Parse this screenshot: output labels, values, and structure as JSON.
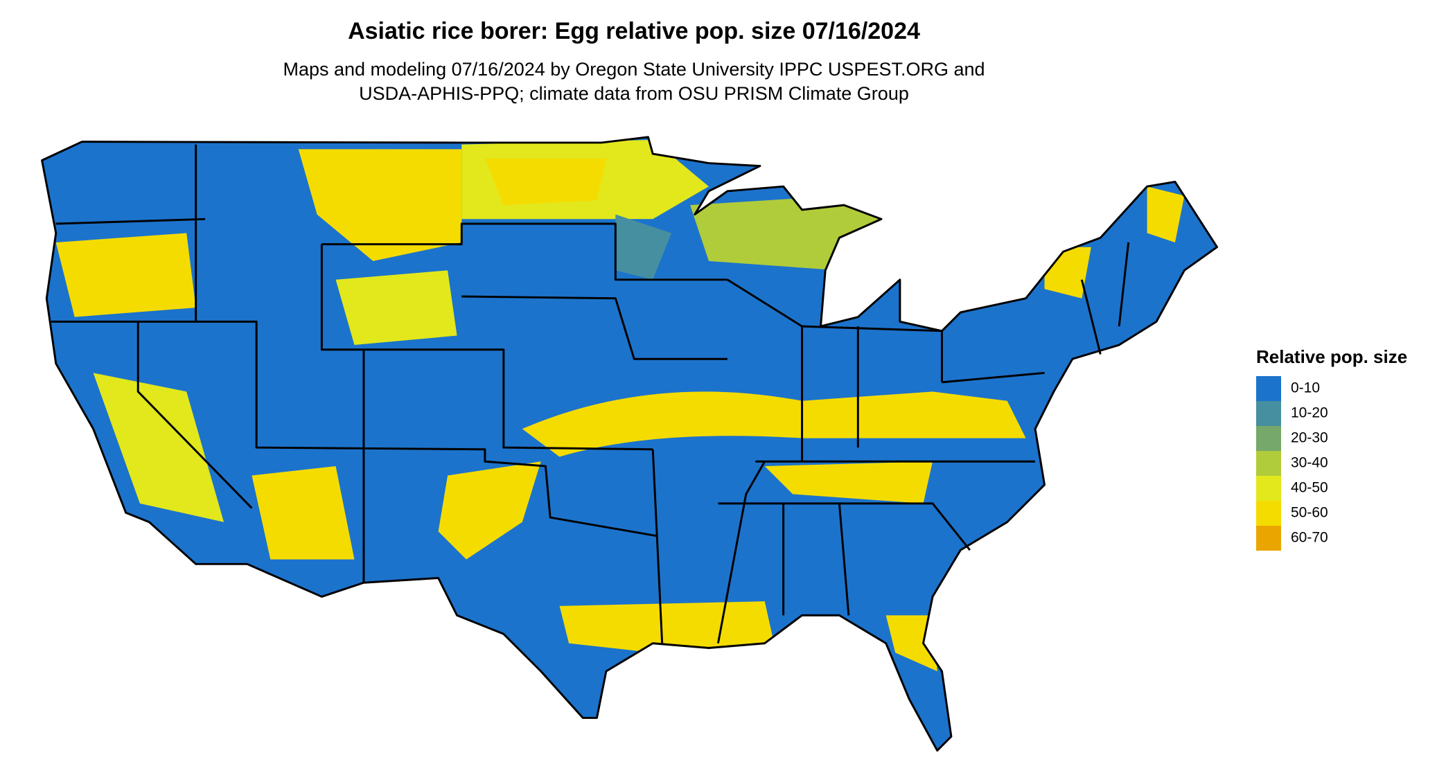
{
  "title": "Asiatic rice borer: Egg relative pop. size 07/16/2024",
  "subtitle": [
    "Maps and modeling 07/16/2024 by Oregon State University IPPC USPEST.ORG and",
    "USDA-APHIS-PPQ; climate data from OSU PRISM Climate Group"
  ],
  "legend": {
    "title": "Relative pop. size",
    "items": [
      {
        "label": "0-10",
        "color": "#1c73cc"
      },
      {
        "label": "10-20",
        "color": "#468fa0"
      },
      {
        "label": "20-30",
        "color": "#77a86b"
      },
      {
        "label": "30-40",
        "color": "#b0cc3a"
      },
      {
        "label": "40-50",
        "color": "#e2e81b"
      },
      {
        "label": "50-60",
        "color": "#f5dc00"
      },
      {
        "label": "60-70",
        "color": "#eba500"
      }
    ]
  }
}
